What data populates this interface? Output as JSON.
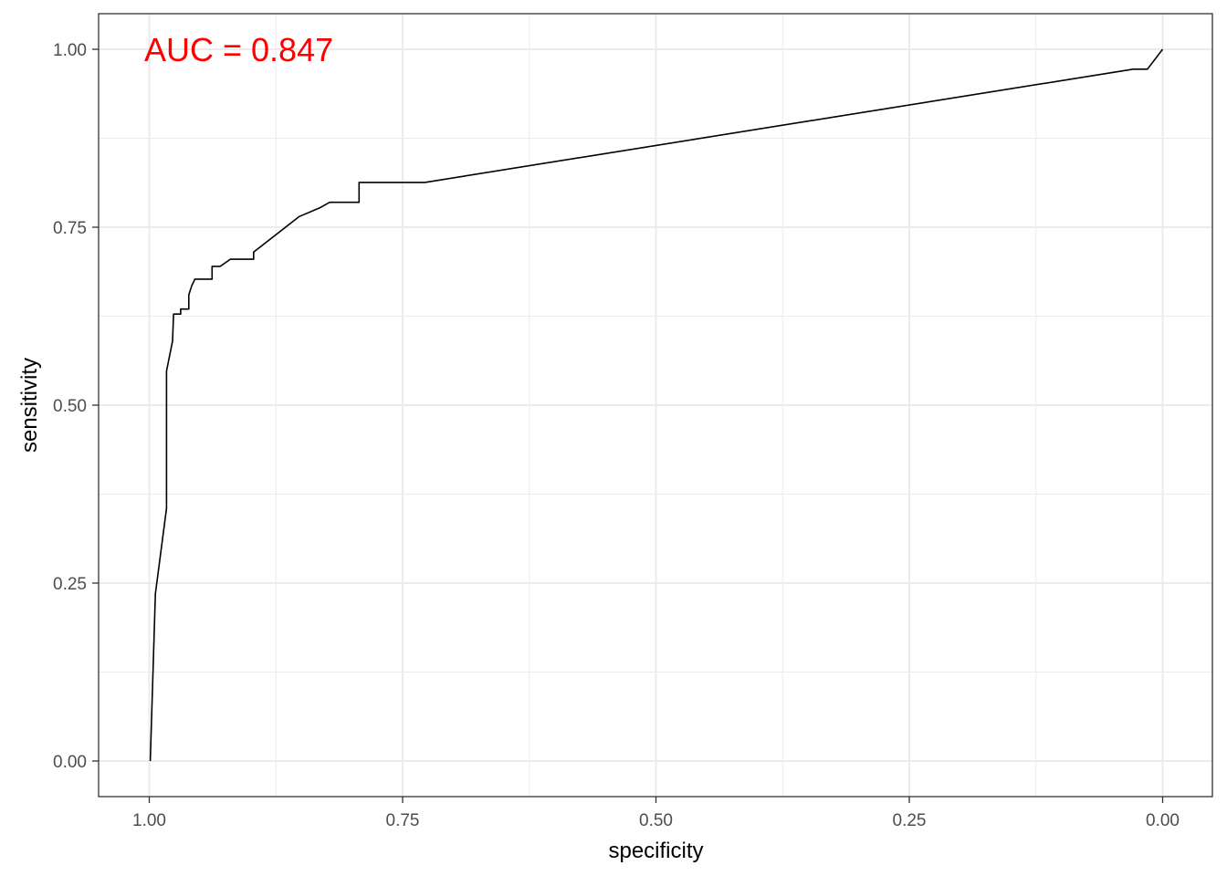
{
  "chart_data": {
    "type": "line",
    "title": "",
    "xlabel": "specificity",
    "ylabel": "sensitivity",
    "x_reversed": true,
    "xlim": [
      1.0,
      0.0
    ],
    "ylim": [
      0.0,
      1.0
    ],
    "x_ticks": [
      {
        "value": 1.0,
        "label": "1.00"
      },
      {
        "value": 0.75,
        "label": "0.75"
      },
      {
        "value": 0.5,
        "label": "0.50"
      },
      {
        "value": 0.25,
        "label": "0.25"
      },
      {
        "value": 0.0,
        "label": "0.00"
      }
    ],
    "y_ticks": [
      {
        "value": 0.0,
        "label": "0.00"
      },
      {
        "value": 0.25,
        "label": "0.25"
      },
      {
        "value": 0.5,
        "label": "0.50"
      },
      {
        "value": 0.75,
        "label": "0.75"
      },
      {
        "value": 1.0,
        "label": "1.00"
      }
    ],
    "grid": true,
    "line_color": "#000000",
    "annotation": {
      "text": "AUC =  0.847",
      "color": "#ff0000"
    },
    "series": [
      {
        "points": [
          [
            0.999,
            0.0
          ],
          [
            0.994,
            0.235
          ],
          [
            0.983,
            0.355
          ],
          [
            0.983,
            0.548
          ],
          [
            0.977,
            0.59
          ],
          [
            0.976,
            0.628
          ],
          [
            0.969,
            0.628
          ],
          [
            0.969,
            0.635
          ],
          [
            0.961,
            0.635
          ],
          [
            0.961,
            0.655
          ],
          [
            0.958,
            0.668
          ],
          [
            0.955,
            0.677
          ],
          [
            0.938,
            0.677
          ],
          [
            0.938,
            0.695
          ],
          [
            0.93,
            0.695
          ],
          [
            0.92,
            0.705
          ],
          [
            0.897,
            0.705
          ],
          [
            0.897,
            0.715
          ],
          [
            0.852,
            0.765
          ],
          [
            0.832,
            0.777
          ],
          [
            0.822,
            0.785
          ],
          [
            0.793,
            0.785
          ],
          [
            0.793,
            0.813
          ],
          [
            0.728,
            0.813
          ],
          [
            0.029,
            0.972
          ],
          [
            0.015,
            0.972
          ],
          [
            0.0,
            1.0
          ]
        ]
      }
    ]
  }
}
